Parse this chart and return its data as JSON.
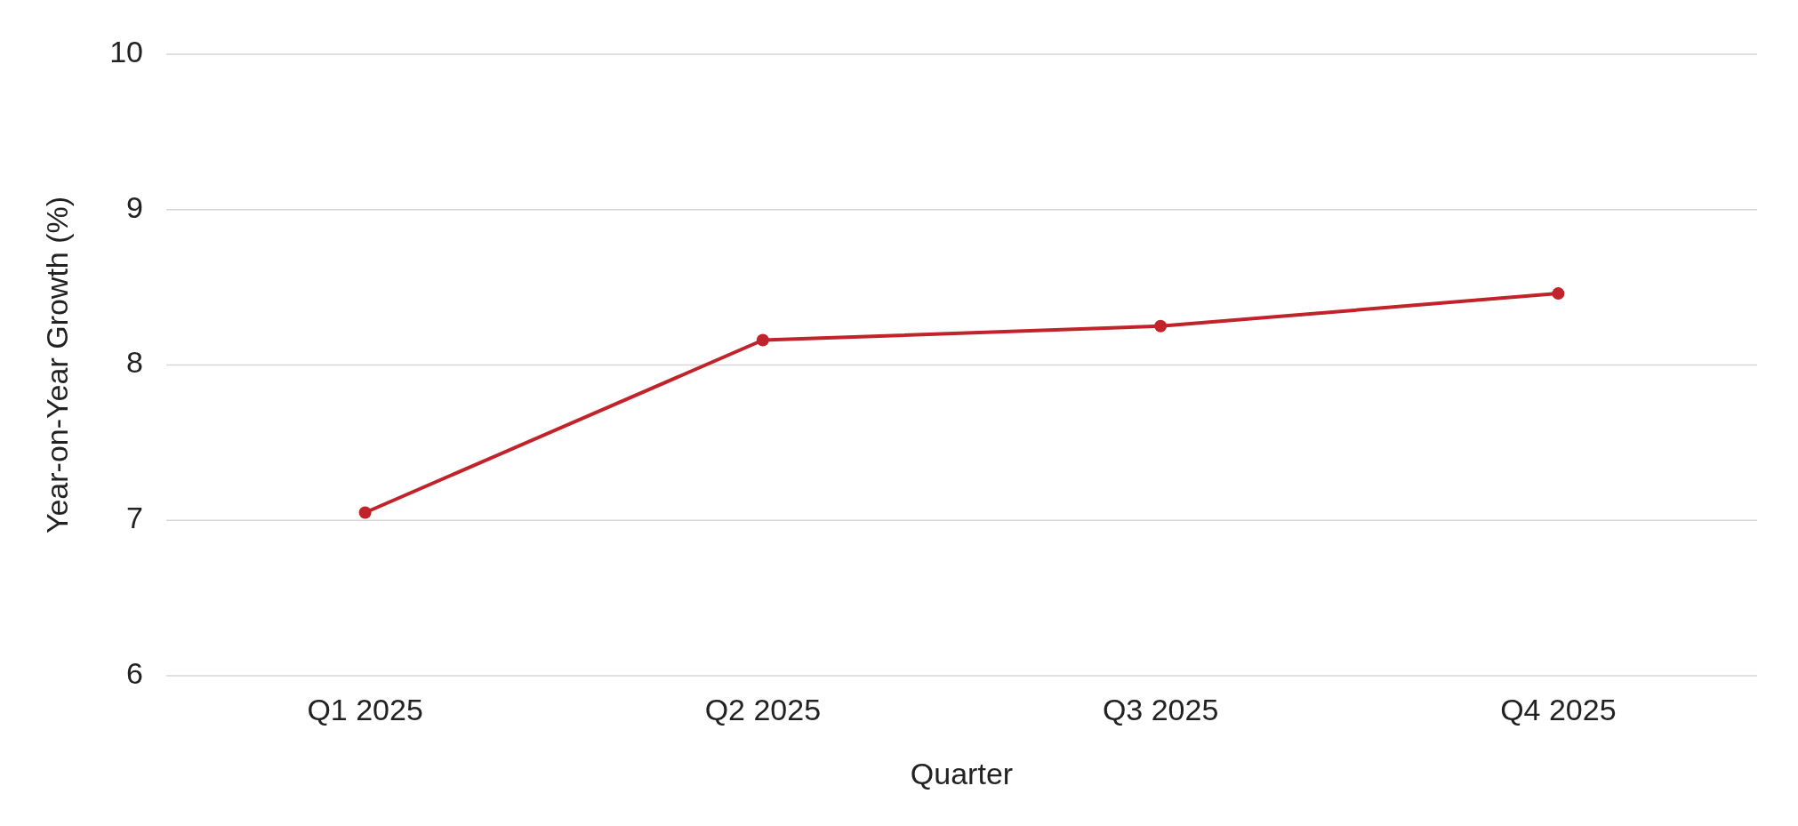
{
  "chart_data": {
    "type": "line",
    "xlabel": "Quarter",
    "ylabel": "Year-on-Year Growth (%)",
    "categories": [
      "Q1 2025",
      "Q2 2025",
      "Q3 2025",
      "Q4 2025"
    ],
    "series": [
      {
        "color": "#c0232a",
        "values": [
          7.05,
          8.16,
          8.25,
          8.46
        ]
      }
    ],
    "ylim": [
      6,
      10
    ],
    "yticks": [
      6,
      7,
      8,
      9,
      10
    ],
    "grid": "y",
    "marker": "circle",
    "line_style": "solid"
  }
}
